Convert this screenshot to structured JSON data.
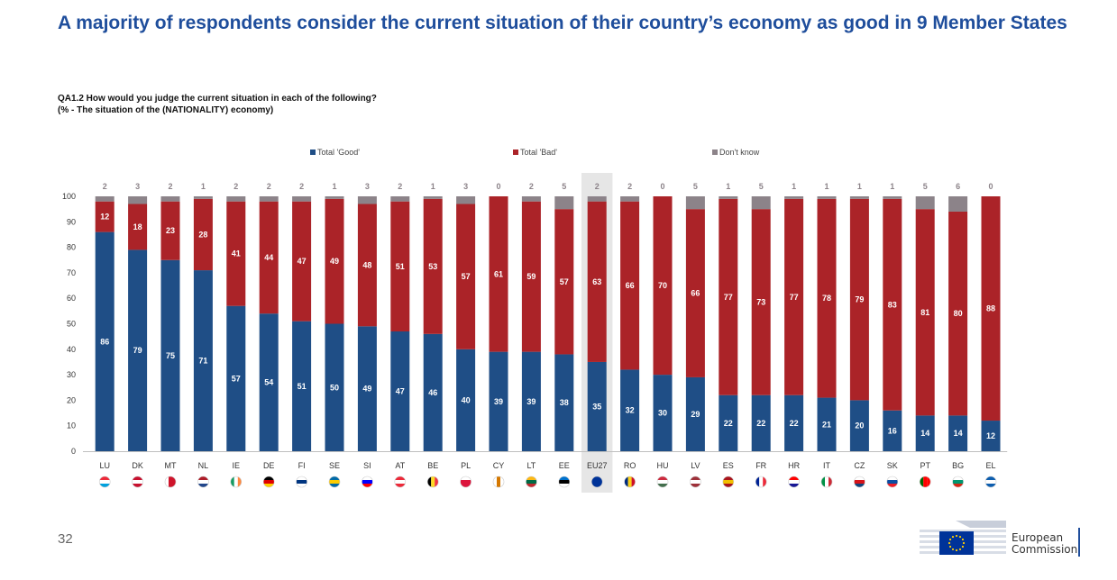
{
  "page": {
    "title": "A majority of respondents consider the current situation of their country’s economy as good in 9 Member States",
    "question_line1": "QA1.2  How would you judge the current situation in each of the following?",
    "question_line2": "(% - The situation of the (NATIONALITY) economy)",
    "page_number": "32",
    "logo_line1": "European",
    "logo_line2": "Commission"
  },
  "colors": {
    "good": "#1f4e86",
    "bad": "#ab2328",
    "dont_know": "#8c8389",
    "highlight": "#e6e6e6",
    "accent": "#1f4e9c"
  },
  "chart_data": {
    "type": "bar",
    "stacked": true,
    "title": "",
    "xlabel": "",
    "ylabel": "",
    "ylim": [
      0,
      100
    ],
    "yticks": [
      0,
      10,
      20,
      30,
      40,
      50,
      60,
      70,
      80,
      90,
      100
    ],
    "legend_position": "top",
    "highlighted_category": "EU27",
    "categories": [
      "LU",
      "DK",
      "MT",
      "NL",
      "IE",
      "DE",
      "FI",
      "SE",
      "SI",
      "AT",
      "BE",
      "PL",
      "CY",
      "LT",
      "EE",
      "EU27",
      "RO",
      "HU",
      "LV",
      "ES",
      "FR",
      "HR",
      "IT",
      "CZ",
      "SK",
      "PT",
      "BG",
      "EL"
    ],
    "series": [
      {
        "name": "Total 'Good'",
        "values": [
          86,
          79,
          75,
          71,
          57,
          54,
          51,
          50,
          49,
          47,
          46,
          40,
          39,
          39,
          38,
          35,
          32,
          30,
          29,
          22,
          22,
          22,
          21,
          20,
          16,
          14,
          14,
          12
        ]
      },
      {
        "name": "Total 'Bad'",
        "values": [
          12,
          18,
          23,
          28,
          41,
          44,
          47,
          49,
          48,
          51,
          53,
          57,
          61,
          59,
          57,
          63,
          66,
          70,
          66,
          77,
          73,
          77,
          78,
          79,
          83,
          81,
          80,
          88
        ]
      },
      {
        "name": "Don't know",
        "values": [
          2,
          3,
          2,
          1,
          2,
          2,
          2,
          1,
          3,
          2,
          1,
          3,
          0,
          2,
          5,
          2,
          2,
          0,
          5,
          1,
          5,
          1,
          1,
          1,
          1,
          5,
          6,
          0
        ]
      }
    ],
    "flags": [
      [
        "#ed2939",
        "#ffffff",
        "#00a1de"
      ],
      [
        "#c8102e",
        "#ffffff",
        "#c8102e"
      ],
      [
        "#ffffff",
        "#cf142b",
        "#cf142b"
      ],
      [
        "#ae1c28",
        "#ffffff",
        "#21468b"
      ],
      [
        "#169b62",
        "#ffffff",
        "#ff883e"
      ],
      [
        "#000000",
        "#dd0000",
        "#ffce00"
      ],
      [
        "#ffffff",
        "#003580",
        "#ffffff"
      ],
      [
        "#006aa7",
        "#fecc00",
        "#006aa7"
      ],
      [
        "#ffffff",
        "#0000ff",
        "#ff0000"
      ],
      [
        "#ed2939",
        "#ffffff",
        "#ed2939"
      ],
      [
        "#000000",
        "#fdda24",
        "#ef3340"
      ],
      [
        "#ffffff",
        "#dc143c",
        "#dc143c"
      ],
      [
        "#ffffff",
        "#d57800",
        "#ffffff"
      ],
      [
        "#fdb913",
        "#006a44",
        "#c1272d"
      ],
      [
        "#0072ce",
        "#000000",
        "#ffffff"
      ],
      [
        "#003399",
        "#003399",
        "#003399"
      ],
      [
        "#002b7f",
        "#fcd116",
        "#ce1126"
      ],
      [
        "#cd2a3e",
        "#ffffff",
        "#436f4d"
      ],
      [
        "#9e3039",
        "#ffffff",
        "#9e3039"
      ],
      [
        "#aa151b",
        "#f1bf00",
        "#aa151b"
      ],
      [
        "#002395",
        "#ffffff",
        "#ed2939"
      ],
      [
        "#ff0000",
        "#ffffff",
        "#171796"
      ],
      [
        "#009246",
        "#ffffff",
        "#ce2b37"
      ],
      [
        "#ffffff",
        "#d7141a",
        "#11457e"
      ],
      [
        "#ffffff",
        "#0b4ea2",
        "#ee1c25"
      ],
      [
        "#006600",
        "#ff0000",
        "#ff0000"
      ],
      [
        "#ffffff",
        "#00966e",
        "#d62612"
      ],
      [
        "#0d5eaf",
        "#ffffff",
        "#0d5eaf"
      ]
    ]
  }
}
